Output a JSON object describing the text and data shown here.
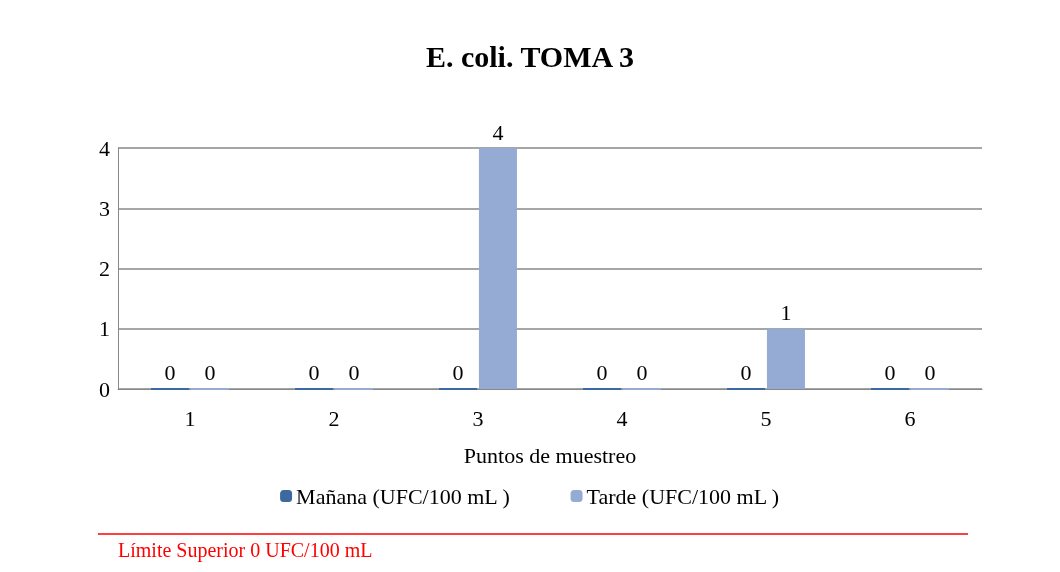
{
  "chart_data": {
    "type": "bar",
    "title": "E. coli. TOMA 3",
    "xlabel": "Puntos de muestreo",
    "categories": [
      "1",
      "2",
      "3",
      "4",
      "5",
      "6"
    ],
    "series": [
      {
        "name": "Mañana (UFC/100 mL )",
        "color": "#3c6aa0",
        "values": [
          0,
          0,
          0,
          0,
          0,
          0
        ]
      },
      {
        "name": "Tarde (UFC/100 mL )",
        "color": "#95abd3",
        "values": [
          0,
          0,
          4,
          0,
          1,
          0
        ]
      }
    ],
    "ylim": [
      0,
      4
    ],
    "yticks": [
      0,
      1,
      2,
      3,
      4
    ],
    "grid": "y",
    "legend": "bottom",
    "data_labels": true,
    "annotations": [
      "Límite Superior 0 UFC/100 mL"
    ]
  }
}
